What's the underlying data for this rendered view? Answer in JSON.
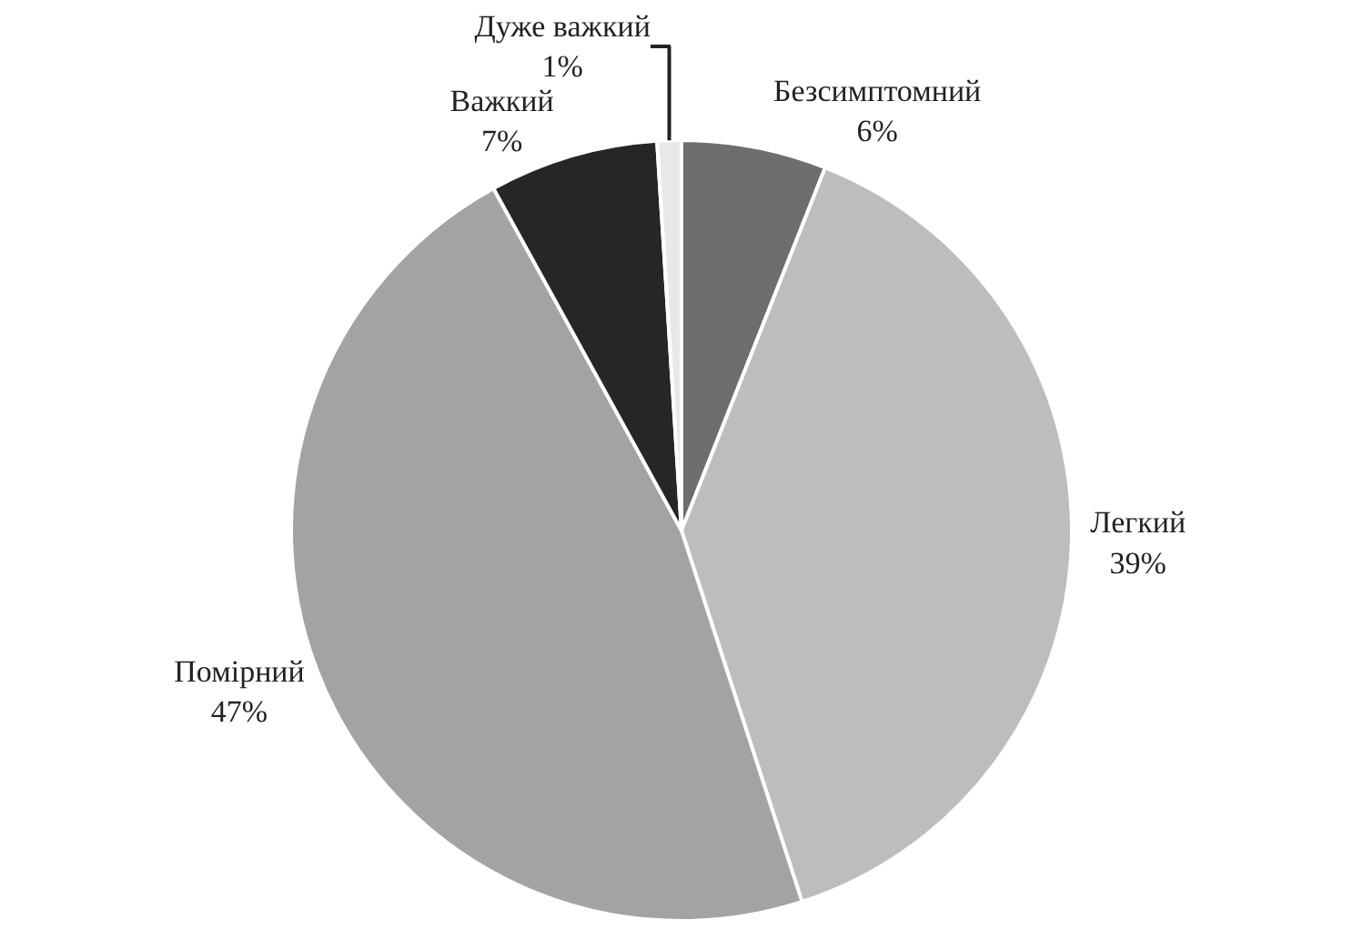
{
  "chart_data": {
    "type": "pie",
    "categories": [
      "Безсимптомний",
      "Легкий",
      "Помірний",
      "Важкий",
      "Дуже важкий"
    ],
    "values": [
      6,
      39,
      47,
      7,
      1
    ],
    "value_labels": [
      "6%",
      "39%",
      "47%",
      "7%",
      "1%"
    ],
    "colors": [
      "#6e6e6e",
      "#bdbdbd",
      "#a3a3a3",
      "#262626",
      "#e8e8e8"
    ],
    "legend": false
  }
}
